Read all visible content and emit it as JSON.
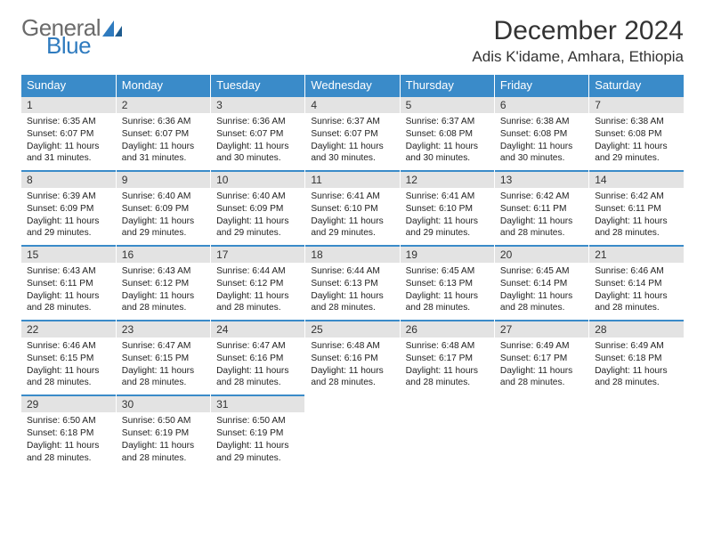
{
  "brand": {
    "word1": "General",
    "word2": "Blue",
    "accent": "#2f7bbf",
    "gray": "#6b6b6b"
  },
  "title": "December 2024",
  "location": "Adis K'idame, Amhara, Ethiopia",
  "colors": {
    "header_bg": "#3a8bc9",
    "header_text": "#ffffff",
    "daynum_bg": "#e3e3e3",
    "border": "#3a8bc9",
    "text": "#222222",
    "background": "#ffffff"
  },
  "day_labels": [
    "Sunday",
    "Monday",
    "Tuesday",
    "Wednesday",
    "Thursday",
    "Friday",
    "Saturday"
  ],
  "weeks": [
    [
      {
        "n": "1",
        "sr": "Sunrise: 6:35 AM",
        "ss": "Sunset: 6:07 PM",
        "dl": "Daylight: 11 hours and 31 minutes."
      },
      {
        "n": "2",
        "sr": "Sunrise: 6:36 AM",
        "ss": "Sunset: 6:07 PM",
        "dl": "Daylight: 11 hours and 31 minutes."
      },
      {
        "n": "3",
        "sr": "Sunrise: 6:36 AM",
        "ss": "Sunset: 6:07 PM",
        "dl": "Daylight: 11 hours and 30 minutes."
      },
      {
        "n": "4",
        "sr": "Sunrise: 6:37 AM",
        "ss": "Sunset: 6:07 PM",
        "dl": "Daylight: 11 hours and 30 minutes."
      },
      {
        "n": "5",
        "sr": "Sunrise: 6:37 AM",
        "ss": "Sunset: 6:08 PM",
        "dl": "Daylight: 11 hours and 30 minutes."
      },
      {
        "n": "6",
        "sr": "Sunrise: 6:38 AM",
        "ss": "Sunset: 6:08 PM",
        "dl": "Daylight: 11 hours and 30 minutes."
      },
      {
        "n": "7",
        "sr": "Sunrise: 6:38 AM",
        "ss": "Sunset: 6:08 PM",
        "dl": "Daylight: 11 hours and 29 minutes."
      }
    ],
    [
      {
        "n": "8",
        "sr": "Sunrise: 6:39 AM",
        "ss": "Sunset: 6:09 PM",
        "dl": "Daylight: 11 hours and 29 minutes."
      },
      {
        "n": "9",
        "sr": "Sunrise: 6:40 AM",
        "ss": "Sunset: 6:09 PM",
        "dl": "Daylight: 11 hours and 29 minutes."
      },
      {
        "n": "10",
        "sr": "Sunrise: 6:40 AM",
        "ss": "Sunset: 6:09 PM",
        "dl": "Daylight: 11 hours and 29 minutes."
      },
      {
        "n": "11",
        "sr": "Sunrise: 6:41 AM",
        "ss": "Sunset: 6:10 PM",
        "dl": "Daylight: 11 hours and 29 minutes."
      },
      {
        "n": "12",
        "sr": "Sunrise: 6:41 AM",
        "ss": "Sunset: 6:10 PM",
        "dl": "Daylight: 11 hours and 29 minutes."
      },
      {
        "n": "13",
        "sr": "Sunrise: 6:42 AM",
        "ss": "Sunset: 6:11 PM",
        "dl": "Daylight: 11 hours and 28 minutes."
      },
      {
        "n": "14",
        "sr": "Sunrise: 6:42 AM",
        "ss": "Sunset: 6:11 PM",
        "dl": "Daylight: 11 hours and 28 minutes."
      }
    ],
    [
      {
        "n": "15",
        "sr": "Sunrise: 6:43 AM",
        "ss": "Sunset: 6:11 PM",
        "dl": "Daylight: 11 hours and 28 minutes."
      },
      {
        "n": "16",
        "sr": "Sunrise: 6:43 AM",
        "ss": "Sunset: 6:12 PM",
        "dl": "Daylight: 11 hours and 28 minutes."
      },
      {
        "n": "17",
        "sr": "Sunrise: 6:44 AM",
        "ss": "Sunset: 6:12 PM",
        "dl": "Daylight: 11 hours and 28 minutes."
      },
      {
        "n": "18",
        "sr": "Sunrise: 6:44 AM",
        "ss": "Sunset: 6:13 PM",
        "dl": "Daylight: 11 hours and 28 minutes."
      },
      {
        "n": "19",
        "sr": "Sunrise: 6:45 AM",
        "ss": "Sunset: 6:13 PM",
        "dl": "Daylight: 11 hours and 28 minutes."
      },
      {
        "n": "20",
        "sr": "Sunrise: 6:45 AM",
        "ss": "Sunset: 6:14 PM",
        "dl": "Daylight: 11 hours and 28 minutes."
      },
      {
        "n": "21",
        "sr": "Sunrise: 6:46 AM",
        "ss": "Sunset: 6:14 PM",
        "dl": "Daylight: 11 hours and 28 minutes."
      }
    ],
    [
      {
        "n": "22",
        "sr": "Sunrise: 6:46 AM",
        "ss": "Sunset: 6:15 PM",
        "dl": "Daylight: 11 hours and 28 minutes."
      },
      {
        "n": "23",
        "sr": "Sunrise: 6:47 AM",
        "ss": "Sunset: 6:15 PM",
        "dl": "Daylight: 11 hours and 28 minutes."
      },
      {
        "n": "24",
        "sr": "Sunrise: 6:47 AM",
        "ss": "Sunset: 6:16 PM",
        "dl": "Daylight: 11 hours and 28 minutes."
      },
      {
        "n": "25",
        "sr": "Sunrise: 6:48 AM",
        "ss": "Sunset: 6:16 PM",
        "dl": "Daylight: 11 hours and 28 minutes."
      },
      {
        "n": "26",
        "sr": "Sunrise: 6:48 AM",
        "ss": "Sunset: 6:17 PM",
        "dl": "Daylight: 11 hours and 28 minutes."
      },
      {
        "n": "27",
        "sr": "Sunrise: 6:49 AM",
        "ss": "Sunset: 6:17 PM",
        "dl": "Daylight: 11 hours and 28 minutes."
      },
      {
        "n": "28",
        "sr": "Sunrise: 6:49 AM",
        "ss": "Sunset: 6:18 PM",
        "dl": "Daylight: 11 hours and 28 minutes."
      }
    ],
    [
      {
        "n": "29",
        "sr": "Sunrise: 6:50 AM",
        "ss": "Sunset: 6:18 PM",
        "dl": "Daylight: 11 hours and 28 minutes."
      },
      {
        "n": "30",
        "sr": "Sunrise: 6:50 AM",
        "ss": "Sunset: 6:19 PM",
        "dl": "Daylight: 11 hours and 28 minutes."
      },
      {
        "n": "31",
        "sr": "Sunrise: 6:50 AM",
        "ss": "Sunset: 6:19 PM",
        "dl": "Daylight: 11 hours and 29 minutes."
      },
      null,
      null,
      null,
      null
    ]
  ]
}
